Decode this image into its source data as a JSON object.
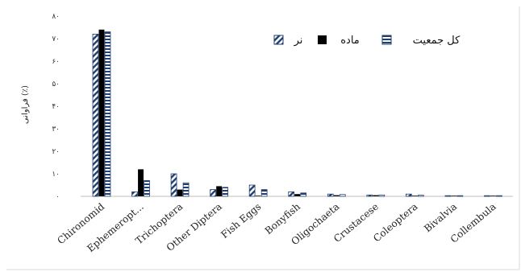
{
  "chart_data": {
    "type": "bar",
    "ylabel": "فراوانی (٪)",
    "ylim": [
      0,
      80
    ],
    "yticks": [
      "۰",
      "۱۰",
      "۲۰",
      "۳۰",
      "۴۰",
      "۵۰",
      "۶۰",
      "۷۰",
      "۸۰"
    ],
    "grid": false,
    "legend_position": "top-right",
    "categories": [
      "Chironomid",
      "Ephemeropt...",
      "Trichoptera",
      "Other Diptera",
      "Fish Eggs",
      "Bonyfish",
      "Oligochaeta",
      "Crustacese",
      "Coleoptera",
      "Bivalvia",
      "Collembula"
    ],
    "series": [
      {
        "name": "نر",
        "pattern": "diagonal-hatch",
        "color": "#1f3f6e",
        "values": [
          72,
          2,
          10,
          3,
          5,
          2,
          1,
          0.6,
          1,
          0.3,
          0.3
        ]
      },
      {
        "name": "ماده",
        "pattern": "solid",
        "color": "#000000",
        "values": [
          74,
          12,
          3,
          4.5,
          0,
          1,
          0.5,
          0.5,
          0.2,
          0.2,
          0.2
        ]
      },
      {
        "name": "کل جمعیت",
        "pattern": "horizontal-stripes",
        "color": "#1f3f6e",
        "values": [
          73,
          7,
          6,
          4,
          3,
          1.5,
          0.8,
          0.6,
          0.5,
          0.3,
          0.3
        ]
      }
    ]
  }
}
